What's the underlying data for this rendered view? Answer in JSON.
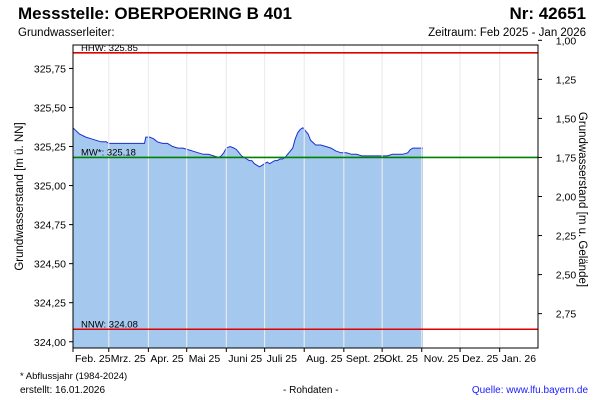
{
  "header": {
    "title": "Messstelle: OBERPOERING B 401",
    "nr": "Nr: 42651",
    "aquifer": "Grundwasserleiter:",
    "period": "Zeitraum: Feb 2025 - Jan 2026"
  },
  "footer": {
    "footnote": "* Abflussjahr (1984-2024)",
    "created": "erstellt:  16.01.2026",
    "rawdata": "- Rohdaten -",
    "source": "Quelle: www.lfu.bayern.de"
  },
  "colors": {
    "fill": "#a5c8ef",
    "line": "#1c2fcf",
    "extreme_lines": "#e00000",
    "mean_line": "#008000",
    "grid": "#ffffff",
    "plot_bg": "#ffffff"
  },
  "chart_data": {
    "type": "area",
    "title": "Messstelle: OBERPOERING B 401",
    "ylabel": "Grundwasserstand [m ü. NN]",
    "y2label": "Grundwasserstand [m u. Gelände]",
    "ylim": [
      323.96,
      325.9
    ],
    "y2_offset": 326.93,
    "yticks": [
      {
        "v": 325.75,
        "label": "325,75"
      },
      {
        "v": 325.5,
        "label": "325,50"
      },
      {
        "v": 325.25,
        "label": "325,25"
      },
      {
        "v": 325.0,
        "label": "325,00"
      },
      {
        "v": 324.75,
        "label": "324,75"
      },
      {
        "v": 324.5,
        "label": "324,50"
      },
      {
        "v": 324.25,
        "label": "324,25"
      },
      {
        "v": 324.0,
        "label": "324,00"
      }
    ],
    "y2ticks": [
      {
        "v": 1.0,
        "label": "1,00"
      },
      {
        "v": 1.25,
        "label": "1,25"
      },
      {
        "v": 1.5,
        "label": "1,50"
      },
      {
        "v": 1.75,
        "label": "1,75"
      },
      {
        "v": 2.0,
        "label": "2,00"
      },
      {
        "v": 2.25,
        "label": "2,25"
      },
      {
        "v": 2.5,
        "label": "2,50"
      },
      {
        "v": 2.75,
        "label": "2,75"
      }
    ],
    "xticks": [
      {
        "day": 0,
        "label": "Feb. 25"
      },
      {
        "day": 28,
        "label": "Mrz. 25"
      },
      {
        "day": 59,
        "label": "Apr. 25"
      },
      {
        "day": 89,
        "label": "Mai 25"
      },
      {
        "day": 120,
        "label": "Juni 25"
      },
      {
        "day": 150,
        "label": "Juli 25"
      },
      {
        "day": 181,
        "label": "Aug. 25"
      },
      {
        "day": 212,
        "label": "Sept. 25"
      },
      {
        "day": 242,
        "label": "Okt. 25"
      },
      {
        "day": 273,
        "label": "Nov. 25"
      },
      {
        "day": 303,
        "label": "Dez. 25"
      },
      {
        "day": 334,
        "label": "Jan. 26"
      }
    ],
    "xmax_day": 364,
    "reference_lines": [
      {
        "label": "HHW: 325.85",
        "value": 325.85,
        "kind": "extreme"
      },
      {
        "label": "MW*: 325.18",
        "value": 325.18,
        "kind": "mean"
      },
      {
        "label": "NNW: 324.08",
        "value": 324.08,
        "kind": "extreme"
      }
    ],
    "series": [
      {
        "x": [
          0,
          5,
          10,
          14,
          18,
          22,
          26,
          28,
          32,
          36,
          40,
          44,
          48,
          52,
          56,
          57,
          60,
          63,
          66,
          70,
          74,
          78,
          82,
          86,
          90,
          94,
          98,
          102,
          106,
          110,
          114,
          116,
          118,
          120,
          123,
          126,
          128,
          130,
          132,
          134,
          136,
          138,
          140,
          142,
          144,
          146,
          148,
          150,
          152,
          154,
          156,
          158,
          160,
          162,
          164,
          166,
          168,
          170,
          172,
          174,
          176,
          178,
          180,
          182,
          184,
          186,
          190,
          194,
          198,
          202,
          206,
          210,
          214,
          218,
          222,
          226,
          230,
          234,
          238,
          242,
          246,
          250,
          254,
          258,
          262,
          264,
          266,
          268,
          270,
          272,
          274
        ],
        "y": [
          325.37,
          325.33,
          325.31,
          325.3,
          325.29,
          325.28,
          325.28,
          325.27,
          325.27,
          325.27,
          325.27,
          325.27,
          325.27,
          325.27,
          325.27,
          325.31,
          325.31,
          325.3,
          325.28,
          325.27,
          325.27,
          325.25,
          325.24,
          325.24,
          325.23,
          325.22,
          325.21,
          325.2,
          325.2,
          325.19,
          325.18,
          325.19,
          325.21,
          325.24,
          325.25,
          325.24,
          325.23,
          325.21,
          325.19,
          325.18,
          325.17,
          325.16,
          325.16,
          325.14,
          325.13,
          325.12,
          325.13,
          325.14,
          325.15,
          325.14,
          325.15,
          325.16,
          325.16,
          325.17,
          325.17,
          325.18,
          325.2,
          325.22,
          325.24,
          325.3,
          325.34,
          325.36,
          325.37,
          325.35,
          325.33,
          325.29,
          325.26,
          325.26,
          325.25,
          325.24,
          325.22,
          325.21,
          325.21,
          325.2,
          325.2,
          325.19,
          325.19,
          325.19,
          325.19,
          325.19,
          325.19,
          325.2,
          325.2,
          325.2,
          325.21,
          325.23,
          325.24,
          325.24,
          325.24,
          325.24,
          325.24
        ]
      }
    ]
  }
}
